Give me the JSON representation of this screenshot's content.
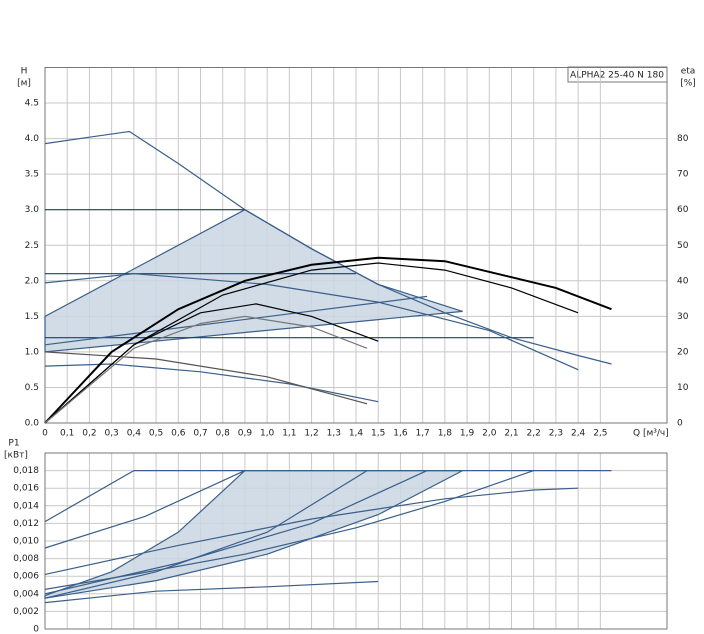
{
  "chart_data": [
    {
      "type": "line",
      "title": "ALPHA2 25-40 N 180",
      "ylabel": "H",
      "yunit": "[м]",
      "y2label": "eta",
      "y2unit": "[%]",
      "xlabel": "Q [м³/ч]",
      "xlim": [
        0,
        2.8
      ],
      "xticks": [
        0,
        0.1,
        0.2,
        0.3,
        0.4,
        0.5,
        0.6,
        0.7,
        0.8,
        0.9,
        1,
        1.1,
        1.2,
        1.3,
        1.4,
        1.5,
        1.6,
        1.7,
        1.8,
        1.9,
        2,
        2.1,
        2.2,
        2.3,
        2.4,
        2.5
      ],
      "xtick_labels": [
        "0",
        "0,1",
        "0,2",
        "0,3",
        "0,4",
        "0,5",
        "0,6",
        "0,7",
        "0,8",
        "0,9",
        "1,0",
        "1,1",
        "1,2",
        "1,3",
        "1,4",
        "1,5",
        "1,6",
        "1,7",
        "1,8",
        "1,9",
        "2,0",
        "2,1",
        "2,2",
        "2,3",
        "2,4",
        "2,5"
      ],
      "ylim": [
        0,
        5
      ],
      "yticks": [
        {
          "value": 0,
          "label": "0.0"
        },
        0.5,
        {
          "value": 1,
          "label": "1.0"
        },
        1.5,
        {
          "value": 2,
          "label": "2.0"
        },
        2.5,
        {
          "value": 3,
          "label": "3.0"
        },
        3.5,
        {
          "value": 4,
          "label": "4.0"
        },
        4.5
      ],
      "y2lim": [
        0,
        100
      ],
      "y2ticks": [
        0,
        10,
        20,
        30,
        40,
        50,
        60,
        70,
        80
      ],
      "grid": true,
      "series": [
        {
          "color": "#3a5f8a",
          "fill": "#c9d6e3",
          "x": [
            0,
            0,
            0.9,
            1.2,
            1.5,
            1.88,
            0
          ],
          "values": [
            1.0,
            1.5,
            3.0,
            2.45,
            1.95,
            1.57,
            1.0
          ]
        },
        {
          "color": "#3a5f8a",
          "x": [
            0,
            0.2,
            0.38,
            0.6,
            0.9,
            1.2,
            1.5,
            1.8,
            2.1,
            2.4,
            2.55
          ],
          "values": [
            3.93,
            4.02,
            4.1,
            3.65,
            3.0,
            2.45,
            1.95,
            1.55,
            1.2,
            0.95,
            0.83
          ]
        },
        {
          "color": "#1f3f66",
          "x": [
            0,
            0.9
          ],
          "values": [
            3.0,
            3.0
          ]
        },
        {
          "color": "#1f3f66",
          "x": [
            0,
            1.4
          ],
          "values": [
            2.1,
            2.1
          ]
        },
        {
          "color": "#1f3f66",
          "x": [
            0,
            2.2
          ],
          "values": [
            1.2,
            1.2
          ]
        },
        {
          "color": "#3a5f8a",
          "x": [
            0,
            1.72
          ],
          "values": [
            1.1,
            1.78
          ]
        },
        {
          "color": "#3a5f8a",
          "x": [
            0,
            0.4,
            1.0,
            1.5,
            2.0,
            2.4
          ],
          "values": [
            1.97,
            2.1,
            1.95,
            1.7,
            1.3,
            0.75
          ]
        },
        {
          "color": "#3a5f8a",
          "x": [
            0,
            0.3,
            0.7,
            1.1,
            1.5
          ],
          "values": [
            0.8,
            0.83,
            0.72,
            0.55,
            0.3
          ]
        },
        {
          "color": "#555555",
          "x": [
            0,
            0.5,
            1.0,
            1.45
          ],
          "values": [
            1.0,
            0.9,
            0.65,
            0.27
          ]
        },
        {
          "color": "#000000",
          "width": 2,
          "axis": "y2",
          "x": [
            0,
            0.3,
            0.6,
            0.9,
            1.2,
            1.5,
            1.8,
            2.1,
            2.3,
            2.55
          ],
          "values": [
            0,
            20,
            32,
            40,
            44.5,
            46.5,
            45.5,
            41,
            38,
            32
          ]
        },
        {
          "color": "#000000",
          "axis": "y2",
          "x": [
            0,
            0.4,
            0.8,
            1.2,
            1.5,
            1.8,
            2.1,
            2.4
          ],
          "values": [
            0,
            22,
            36,
            43,
            45,
            43,
            38,
            31
          ]
        },
        {
          "color": "#000000",
          "axis": "y2",
          "x": [
            0,
            0.4,
            0.7,
            0.95,
            1.2,
            1.5
          ],
          "values": [
            0,
            22,
            31,
            33.5,
            30,
            23
          ]
        },
        {
          "color": "#777777",
          "axis": "y2",
          "x": [
            0,
            0.4,
            0.7,
            0.9,
            1.2,
            1.45
          ],
          "values": [
            0,
            21,
            28,
            30,
            27,
            21
          ]
        }
      ]
    },
    {
      "type": "line",
      "ylabel": "P1",
      "yunit": "[кВт]",
      "xlim": [
        0,
        2.8
      ],
      "ylim": [
        0,
        0.02
      ],
      "yticks": [
        0,
        0.002,
        0.004,
        0.006,
        0.008,
        {
          "value": 0.01,
          "label": "0,010"
        },
        0.012,
        0.014,
        0.016,
        0.018
      ],
      "ytick_labels": [
        "0",
        "0,002",
        "0,004",
        "0,006",
        "0,008",
        "0,010",
        "0,012",
        "0,014",
        "0,016",
        "0,018"
      ],
      "grid": true,
      "series": [
        {
          "color": "#3a5f8a",
          "fill": "#c9d6e3",
          "x": [
            0,
            0.3,
            0.6,
            0.9,
            1.88,
            1.5,
            1.0,
            0.5,
            0
          ],
          "values": [
            0.0038,
            0.0065,
            0.011,
            0.018,
            0.018,
            0.013,
            0.0085,
            0.0055,
            0.0035
          ]
        },
        {
          "color": "#3a5f8a",
          "x": [
            0.4,
            2.55
          ],
          "values": [
            0.018,
            0.018
          ]
        },
        {
          "color": "#3a5f8a",
          "x": [
            0,
            0.4
          ],
          "values": [
            0.0122,
            0.018
          ]
        },
        {
          "color": "#3a5f8a",
          "x": [
            0,
            0.45,
            0.9
          ],
          "values": [
            0.0092,
            0.0128,
            0.018
          ]
        },
        {
          "color": "#3a5f8a",
          "x": [
            0,
            0.5,
            1.0,
            1.45
          ],
          "values": [
            0.0035,
            0.0065,
            0.011,
            0.018
          ]
        },
        {
          "color": "#3a5f8a",
          "x": [
            0,
            0.6,
            1.2,
            1.72
          ],
          "values": [
            0.004,
            0.0075,
            0.012,
            0.018
          ]
        },
        {
          "color": "#3a5f8a",
          "x": [
            0,
            0.4,
            0.9,
            1.4,
            1.8,
            2.2
          ],
          "values": [
            0.0045,
            0.0062,
            0.0085,
            0.0115,
            0.0145,
            0.018
          ]
        },
        {
          "color": "#3a5f8a",
          "x": [
            0,
            0.6,
            1.2,
            1.8,
            2.2,
            2.4
          ],
          "values": [
            0.0062,
            0.0095,
            0.0125,
            0.0148,
            0.0158,
            0.016
          ]
        },
        {
          "color": "#3a5f8a",
          "x": [
            0,
            0.5,
            1.0,
            1.5
          ],
          "values": [
            0.003,
            0.0043,
            0.0048,
            0.0054
          ]
        }
      ]
    }
  ]
}
